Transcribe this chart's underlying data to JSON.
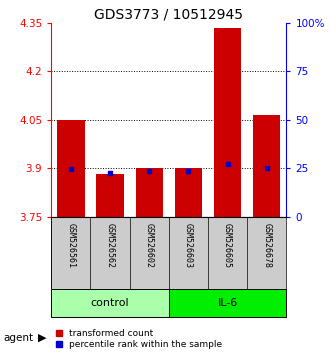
{
  "title": "GDS3773 / 10512945",
  "samples": [
    "GSM526561",
    "GSM526562",
    "GSM526602",
    "GSM526603",
    "GSM526605",
    "GSM526678"
  ],
  "red_values": [
    4.05,
    3.882,
    3.902,
    3.902,
    4.333,
    4.065
  ],
  "blue_values": [
    3.897,
    3.886,
    3.893,
    3.893,
    3.912,
    3.9
  ],
  "y_min": 3.75,
  "y_max": 4.35,
  "y_ticks_left": [
    3.75,
    3.9,
    4.05,
    4.2,
    4.35
  ],
  "y_ticks_right_pos": [
    3.75,
    3.9,
    4.05,
    4.2,
    4.35
  ],
  "right_tick_labels": [
    "0",
    "25",
    "50",
    "75",
    "100%"
  ],
  "dotted_lines": [
    3.9,
    4.05,
    4.2
  ],
  "groups": [
    {
      "label": "control",
      "color": "#aaffaa",
      "dark_color": "#55cc55"
    },
    {
      "label": "IL-6",
      "color": "#00ee00",
      "dark_color": "#00aa00"
    }
  ],
  "agent_label": "agent",
  "bar_width": 0.7,
  "red_color": "#cc0000",
  "blue_color": "#0000cc",
  "legend_red": "transformed count",
  "legend_blue": "percentile rank within the sample",
  "title_fontsize": 10,
  "tick_fontsize": 7.5,
  "sample_fontsize": 6,
  "legend_fontsize": 6.5,
  "group_fontsize": 8
}
